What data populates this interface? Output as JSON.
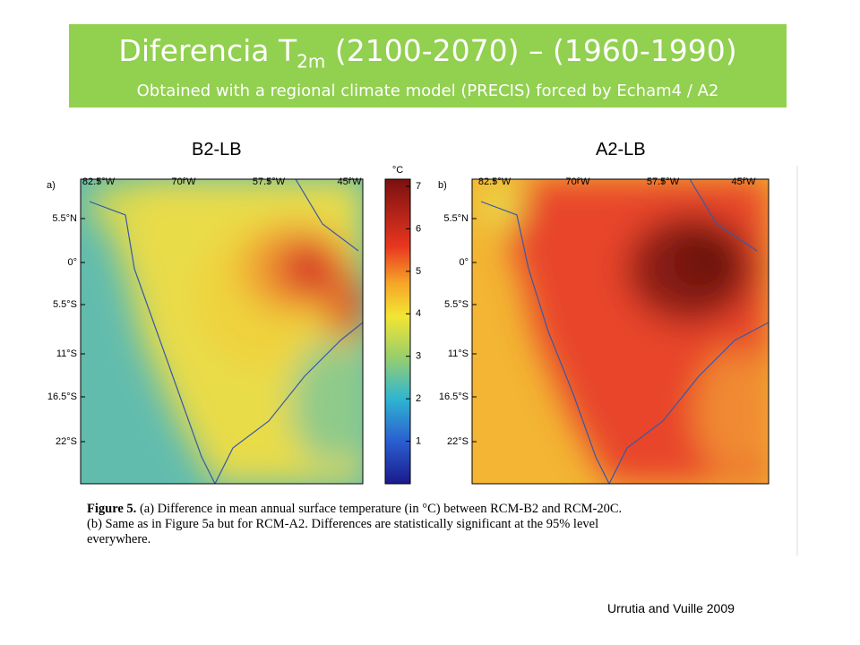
{
  "header": {
    "title": "Diferencia T",
    "title_sub": "2m",
    "title_rest": " (2100-2070) – (1960-1990)",
    "subtitle": "Obtained with a regional climate model (PRECIS) forced by Echam4 / A2"
  },
  "panels": [
    {
      "name": "B2-LB",
      "letter": "a)"
    },
    {
      "name": "A2-LB",
      "letter": "b)"
    }
  ],
  "longitudes": [
    "82.5°W",
    "70°W",
    "57.5°W",
    "45°W"
  ],
  "latitudes": [
    "5.5°N",
    "0°",
    "5.5°S",
    "11°S",
    "16.5°S",
    "22°S"
  ],
  "colorbar": {
    "unit": "°C",
    "ticks": [
      1,
      2,
      3,
      4,
      5,
      6,
      7
    ]
  },
  "caption": {
    "label": "Figure 5.",
    "lines": [
      "(a) Difference in mean annual surface temperature (in °C) between RCM-B2 and RCM-20C.",
      "(b) Same as in Figure 5a but for RCM-A2. Differences are statistically significant at the 95% level",
      "everywhere."
    ]
  },
  "credit": "Urrutia and Vuille 2009"
}
